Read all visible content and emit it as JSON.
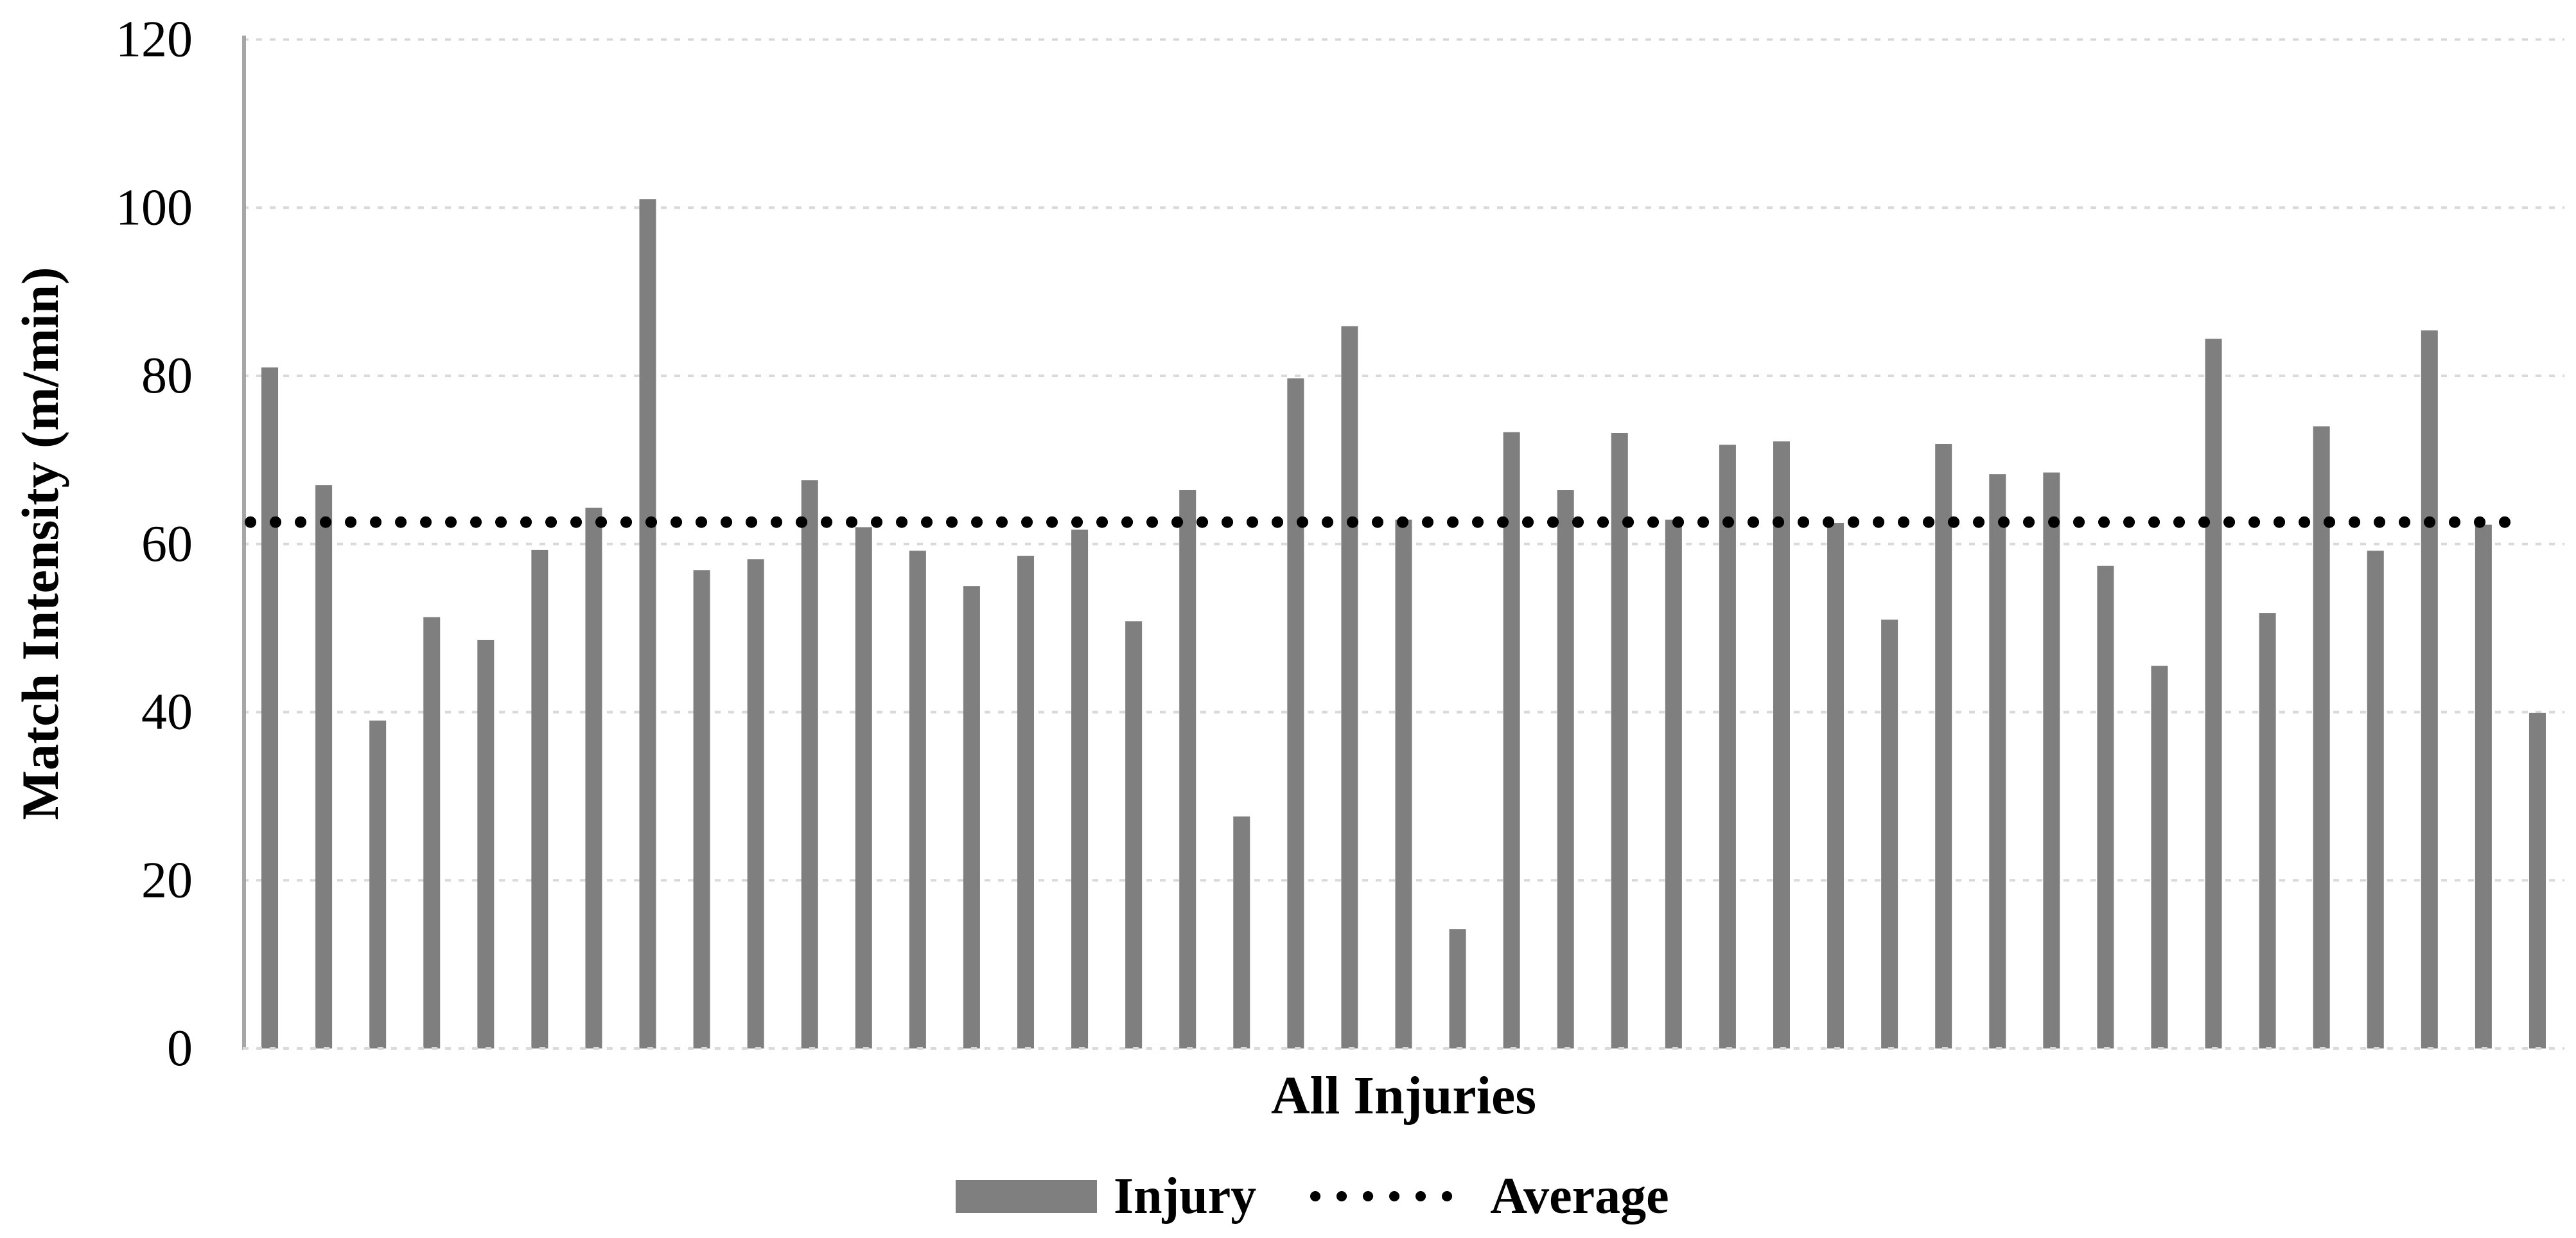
{
  "chart_data": {
    "type": "bar",
    "title": "",
    "x_axis_label": "All Injuries",
    "y_axis_label": "Match Intensity (m/min)",
    "ylim": [
      0,
      120
    ],
    "yticks": [
      0,
      20,
      40,
      60,
      80,
      100,
      120
    ],
    "grid": "horizontal-dashed",
    "legend_position": "bottom",
    "series": [
      {
        "name": "Injury",
        "values": [
          81,
          67,
          39,
          51.3,
          48.6,
          59.3,
          64.3,
          101,
          56.9,
          58.2,
          67.6,
          62,
          59.2,
          55,
          58.6,
          61.7,
          50.8,
          66.4,
          27.6,
          79.7,
          85.9,
          62.9,
          14.2,
          73.3,
          66.4,
          73.2,
          62.9,
          71.8,
          72.2,
          62.5,
          51,
          71.9,
          68.3,
          68.5,
          57.4,
          45.5,
          84.4,
          51.8,
          74,
          59.2,
          85.4,
          62.3,
          39.9
        ]
      }
    ],
    "average_line": {
      "label": "Average",
      "value": 62.6
    },
    "colors": {
      "bar": "#7f7f7f",
      "average_line": "#000000",
      "gridline": "#d9d9d9",
      "axis_line": "#a6a6a6",
      "text": "#000000",
      "background": "#ffffff"
    }
  }
}
